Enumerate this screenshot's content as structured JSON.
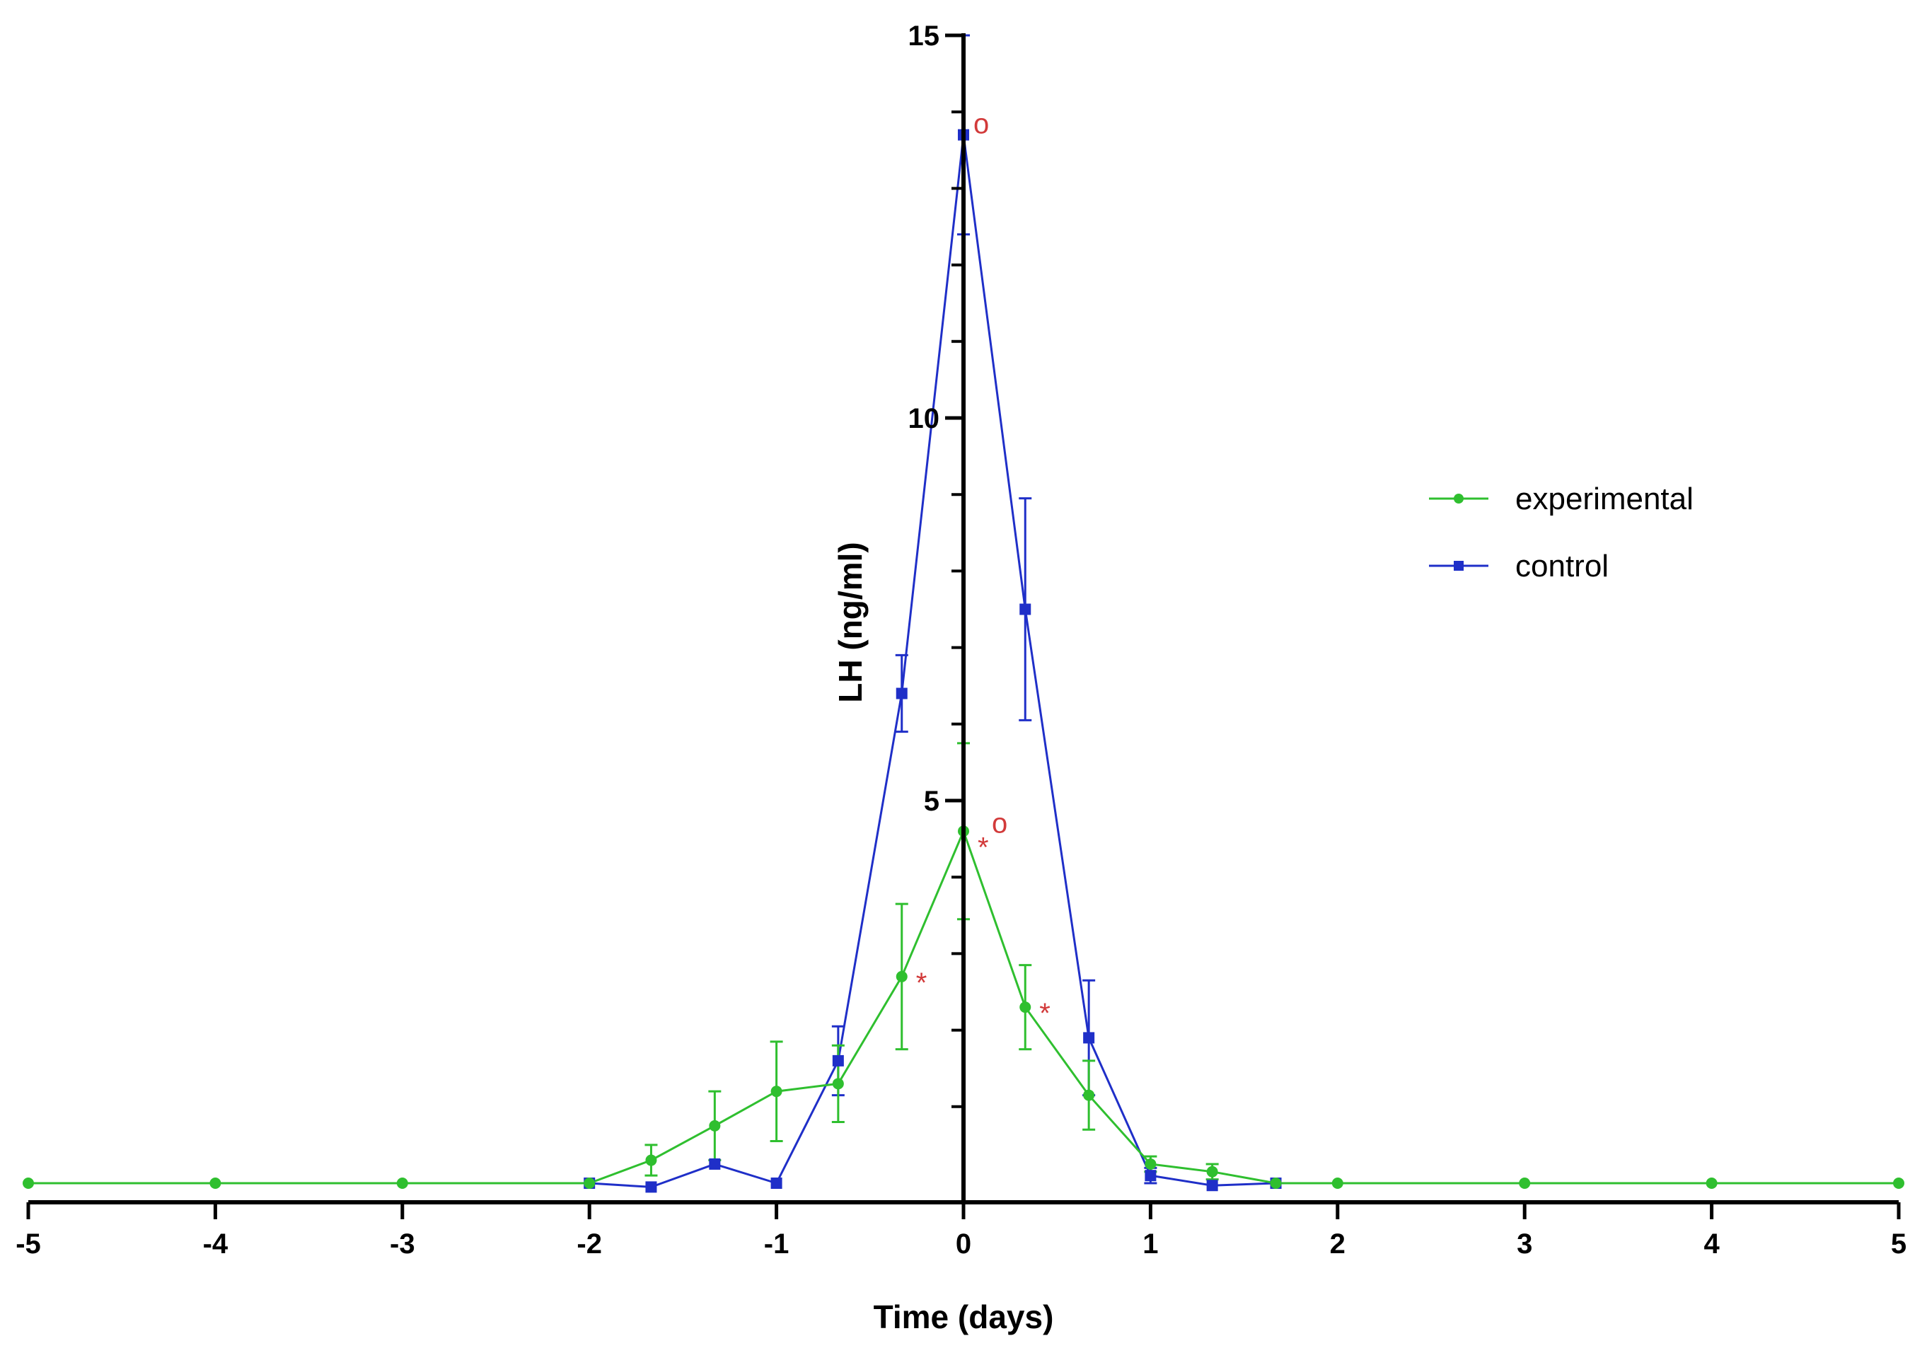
{
  "chart_data": {
    "type": "line",
    "title": "",
    "xlabel": "Time (days)",
    "ylabel": "LH (ng/ml)",
    "xlim": [
      -5,
      5
    ],
    "ylim": [
      0,
      15
    ],
    "x_ticks": [
      -5,
      -4,
      -3,
      -2,
      -1,
      0,
      1,
      2,
      3,
      4,
      5
    ],
    "x_tick_labels": [
      "-5",
      "-4",
      "-3",
      "-2",
      "-1",
      "0",
      "1",
      "2",
      "3",
      "4",
      "5"
    ],
    "y_major_ticks": [
      5,
      10,
      15
    ],
    "y_tick_labels": [
      "5",
      "10",
      "15"
    ],
    "y_minor_step": 1,
    "grid": false,
    "legend_position": "right",
    "colors": {
      "experimental": "#2fbf2f",
      "control": "#1f2fc8",
      "annotation": "#d23a3a"
    },
    "series": [
      {
        "name": "experimental",
        "marker": "circle",
        "color": "#2fbf2f",
        "points": [
          {
            "x": -5,
            "y": 0
          },
          {
            "x": -4,
            "y": 0
          },
          {
            "x": -3,
            "y": 0
          },
          {
            "x": -2,
            "y": 0
          },
          {
            "x": -1.67,
            "y": 0.3,
            "err": 0.2
          },
          {
            "x": -1.33,
            "y": 0.75,
            "err": 0.45
          },
          {
            "x": -1,
            "y": 1.2,
            "err": 0.65
          },
          {
            "x": -0.67,
            "y": 1.3,
            "err": 0.5
          },
          {
            "x": -0.33,
            "y": 2.7,
            "err": 0.95
          },
          {
            "x": 0,
            "y": 4.6,
            "err": 1.15
          },
          {
            "x": 0.33,
            "y": 2.3,
            "err": 0.55
          },
          {
            "x": 0.67,
            "y": 1.15,
            "err": 0.45
          },
          {
            "x": 1,
            "y": 0.25,
            "err": 0.1
          },
          {
            "x": 1.33,
            "y": 0.15,
            "err": 0.1
          },
          {
            "x": 1.67,
            "y": 0
          },
          {
            "x": 2,
            "y": 0
          },
          {
            "x": 3,
            "y": 0
          },
          {
            "x": 4,
            "y": 0
          },
          {
            "x": 5,
            "y": 0
          }
        ]
      },
      {
        "name": "control",
        "marker": "square",
        "color": "#1f2fc8",
        "points": [
          {
            "x": -2,
            "y": 0
          },
          {
            "x": -1.67,
            "y": -0.05
          },
          {
            "x": -1.33,
            "y": 0.25
          },
          {
            "x": -1,
            "y": 0
          },
          {
            "x": -0.67,
            "y": 1.6,
            "err": 0.45
          },
          {
            "x": -0.33,
            "y": 6.4,
            "err": 0.5
          },
          {
            "x": 0,
            "y": 13.7,
            "err": 1.3
          },
          {
            "x": 0.33,
            "y": 7.5,
            "err": 1.45
          },
          {
            "x": 0.67,
            "y": 1.9,
            "err": 0.75
          },
          {
            "x": 1,
            "y": 0.1,
            "err": 0.1
          },
          {
            "x": 1.33,
            "y": -0.03
          },
          {
            "x": 1.67,
            "y": 0
          }
        ]
      }
    ],
    "annotations": [
      {
        "text": "*",
        "x": -0.33,
        "y": 2.7,
        "series": "experimental"
      },
      {
        "text": "*",
        "x": 0,
        "y": 4.6,
        "series": "experimental"
      },
      {
        "text": "o",
        "x": 0,
        "y": 4.6,
        "series": "experimental"
      },
      {
        "text": "*",
        "x": 0.33,
        "y": 2.3,
        "series": "experimental"
      },
      {
        "text": "o",
        "x": 0,
        "y": 13.7,
        "series": "control"
      }
    ]
  }
}
